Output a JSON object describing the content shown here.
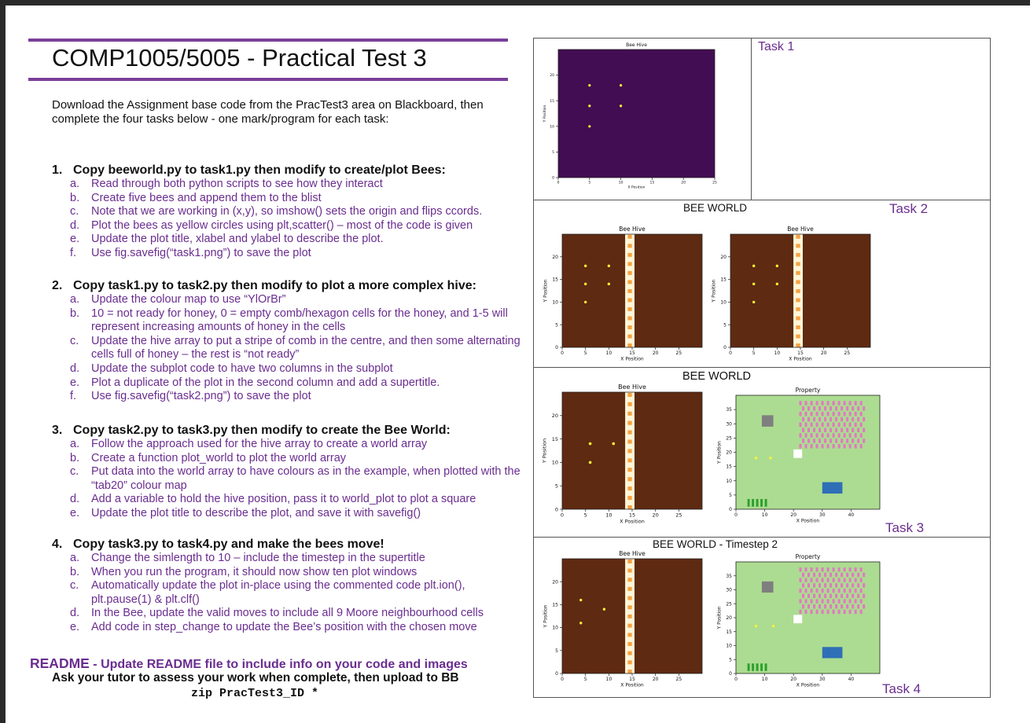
{
  "header": {
    "title": "COMP1005/5005 - Practical Test 3"
  },
  "intro": "Download the Assignment base code from the PracTest3 area on Blackboard, then complete the four tasks below - one mark/program for each task:",
  "tasks": [
    {
      "number": "1.",
      "heading": "Copy beeworld.py to task1.py then modify to create/plot Bees:",
      "items": [
        {
          "letter": "a.",
          "text": "Read through both python scripts to see how they interact"
        },
        {
          "letter": "b.",
          "text": "Create five bees and append them to the blist"
        },
        {
          "letter": "c.",
          "text": "Note that we are working in (x,y), so imshow() sets the origin and flips ccords."
        },
        {
          "letter": "d.",
          "text": "Plot the bees as yellow circles using plt,scatter() – most of the code is given"
        },
        {
          "letter": "e.",
          "text": "Update the plot title, xlabel and ylabel to describe the plot."
        },
        {
          "letter": "f.",
          "text": "Use fig.savefig(“task1.png”) to save the plot"
        }
      ]
    },
    {
      "number": "2.",
      "heading": "Copy task1.py to task2.py then modify to plot a more complex hive:",
      "items": [
        {
          "letter": "a.",
          "text": "Update the colour map to use “YlOrBr”"
        },
        {
          "letter": "b.",
          "text": "10 = not ready for honey, 0 = empty comb/hexagon cells for the honey, and 1-5 will represent increasing amounts of honey in the cells"
        },
        {
          "letter": "c.",
          "text": "Update the hive array to put a stripe of comb in the centre, and then some alternating cells full of honey – the rest is “not ready”"
        },
        {
          "letter": "d.",
          "text": "Update the subplot code to have two columns in the subplot"
        },
        {
          "letter": "e.",
          "text": "Plot a duplicate of the plot in the second column and add a supertitle."
        },
        {
          "letter": "f.",
          "text": "Use fig.savefig(“task2.png”) to save the plot"
        }
      ]
    },
    {
      "number": "3.",
      "heading": "Copy task2.py to task3.py then modify to create the Bee World:",
      "items": [
        {
          "letter": "a.",
          "text": "Follow the approach used for the hive array to create a world array"
        },
        {
          "letter": "b.",
          "text": "Create a function plot_world to plot the world array"
        },
        {
          "letter": "c.",
          "text": "Put data into the world array to have colours as in the example, when plotted with the “tab20” colour map"
        },
        {
          "letter": "d.",
          "text": "Add a variable to hold the hive position, pass it to world_plot to plot a square"
        },
        {
          "letter": "e.",
          "text": "Update the plot title to describe the plot, and save it with savefig()"
        }
      ]
    },
    {
      "number": "4.",
      "heading": "Copy task3.py to task4.py and make the bees move!",
      "items": [
        {
          "letter": "a.",
          "text": "Change the simlength to 10 – include the timestep in the supertitle"
        },
        {
          "letter": "b.",
          "text": "When you run the program, it should now show ten plot windows"
        },
        {
          "letter": "c.",
          "text": "Automatically update the plot in-place using the commented code plt.ion(), plt.pause(1) & plt.clf()"
        },
        {
          "letter": "d.",
          "text": "In the Bee, update the valid moves to include all 9 Moore neighbourhood cells"
        },
        {
          "letter": "e.",
          "text": "Add code in step_change to update the Bee’s position with the chosen move"
        }
      ]
    }
  ],
  "footer": {
    "readme_key": "README",
    "readme_rest": " - Update README file to include info on your code and images",
    "ask": "Ask your tutor to assess your work when complete, then upload to BB",
    "zip": "zip PracTest3_ID *"
  },
  "panels": {
    "task1_label": "Task 1",
    "task2_label": "Task 2",
    "task3_label": "Task 3",
    "task4_label": "Task 4",
    "task2_suptitle": "BEE WORLD",
    "task3_suptitle": "BEE WORLD",
    "task4_suptitle": "BEE WORLD - Timestep 2"
  },
  "colors": {
    "accent_purple": "#6a2d8f",
    "hive_dark_purple": "#420d52",
    "hive_brown": "#5e2a11",
    "comb_orange": "#f5a243",
    "comb_cream": "#fff6d8",
    "bee_yellow": "#fff238",
    "world_green": "#acdc91",
    "world_grey": "#7f7f7f",
    "world_pink": "#e377c2",
    "world_blue": "#2f6fb6",
    "world_darkgreen": "#2ca02c"
  },
  "chart_data": [
    {
      "type": "scatter",
      "title": "Bee Hive",
      "xlabel": "X Position",
      "ylabel": "Y Position",
      "xlim": [
        0,
        25
      ],
      "ylim": [
        0,
        25
      ],
      "xticks": [
        "0",
        "5",
        "10",
        "15",
        "20",
        "25"
      ],
      "yticks": [
        "0",
        "5",
        "10",
        "15",
        "20"
      ],
      "points": [
        [
          5,
          18
        ],
        [
          10,
          18
        ],
        [
          5,
          14
        ],
        [
          10,
          14
        ],
        [
          5,
          10
        ]
      ]
    },
    {
      "type": "scatter",
      "title": "Bee Hive",
      "xlabel": "X Position",
      "ylabel": "Y Position",
      "xlim": [
        0,
        30
      ],
      "ylim": [
        0,
        25
      ],
      "xticks": [
        "0",
        "5",
        "10",
        "15",
        "20",
        "25"
      ],
      "yticks": [
        "0",
        "5",
        "10",
        "15",
        "20"
      ],
      "points": [
        [
          5,
          18
        ],
        [
          10,
          18
        ],
        [
          5,
          14
        ],
        [
          10,
          14
        ],
        [
          5,
          10
        ]
      ]
    },
    {
      "type": "scatter",
      "title": "Bee Hive",
      "xlabel": "X Position",
      "ylabel": "Y Position",
      "xlim": [
        0,
        30
      ],
      "ylim": [
        0,
        25
      ],
      "xticks": [
        "0",
        "5",
        "10",
        "15",
        "20",
        "25"
      ],
      "yticks": [
        "0",
        "5",
        "10",
        "15",
        "20"
      ],
      "points": [
        [
          5,
          18
        ],
        [
          10,
          18
        ],
        [
          5,
          14
        ],
        [
          10,
          14
        ],
        [
          5,
          10
        ]
      ]
    },
    {
      "type": "scatter",
      "title": "Bee Hive",
      "xlabel": "X Position",
      "ylabel": "Y Position",
      "xlim": [
        0,
        30
      ],
      "ylim": [
        0,
        25
      ],
      "xticks": [
        "0",
        "5",
        "10",
        "15",
        "20",
        "25"
      ],
      "yticks": [
        "0",
        "5",
        "10",
        "15",
        "20"
      ],
      "points": [
        [
          6,
          14
        ],
        [
          11,
          14
        ],
        [
          6,
          10
        ]
      ]
    },
    {
      "type": "scatter",
      "title": "Property",
      "xlabel": "X Position",
      "ylabel": "Y Position",
      "xlim": [
        0,
        50
      ],
      "ylim": [
        0,
        40
      ],
      "xticks": [
        "0",
        "10",
        "20",
        "30",
        "40"
      ],
      "yticks": [
        "0",
        "5",
        "10",
        "15",
        "20",
        "25",
        "30",
        "35"
      ],
      "points": [
        [
          7,
          18
        ],
        [
          12,
          18
        ]
      ]
    },
    {
      "type": "scatter",
      "title": "Bee Hive",
      "xlabel": "X Position",
      "ylabel": "Y Position",
      "xlim": [
        0,
        30
      ],
      "ylim": [
        0,
        25
      ],
      "xticks": [
        "0",
        "5",
        "10",
        "15",
        "20",
        "25"
      ],
      "yticks": [
        "0",
        "5",
        "10",
        "15",
        "20"
      ],
      "points": [
        [
          4,
          16
        ],
        [
          9,
          14
        ],
        [
          4,
          11
        ]
      ]
    },
    {
      "type": "scatter",
      "title": "Property",
      "xlabel": "X Position",
      "ylabel": "Y Position",
      "xlim": [
        0,
        50
      ],
      "ylim": [
        0,
        40
      ],
      "xticks": [
        "0",
        "10",
        "20",
        "30",
        "40"
      ],
      "yticks": [
        "0",
        "5",
        "10",
        "15",
        "20",
        "25",
        "30",
        "35"
      ],
      "points": [
        [
          7,
          17
        ],
        [
          13,
          17
        ]
      ]
    }
  ]
}
